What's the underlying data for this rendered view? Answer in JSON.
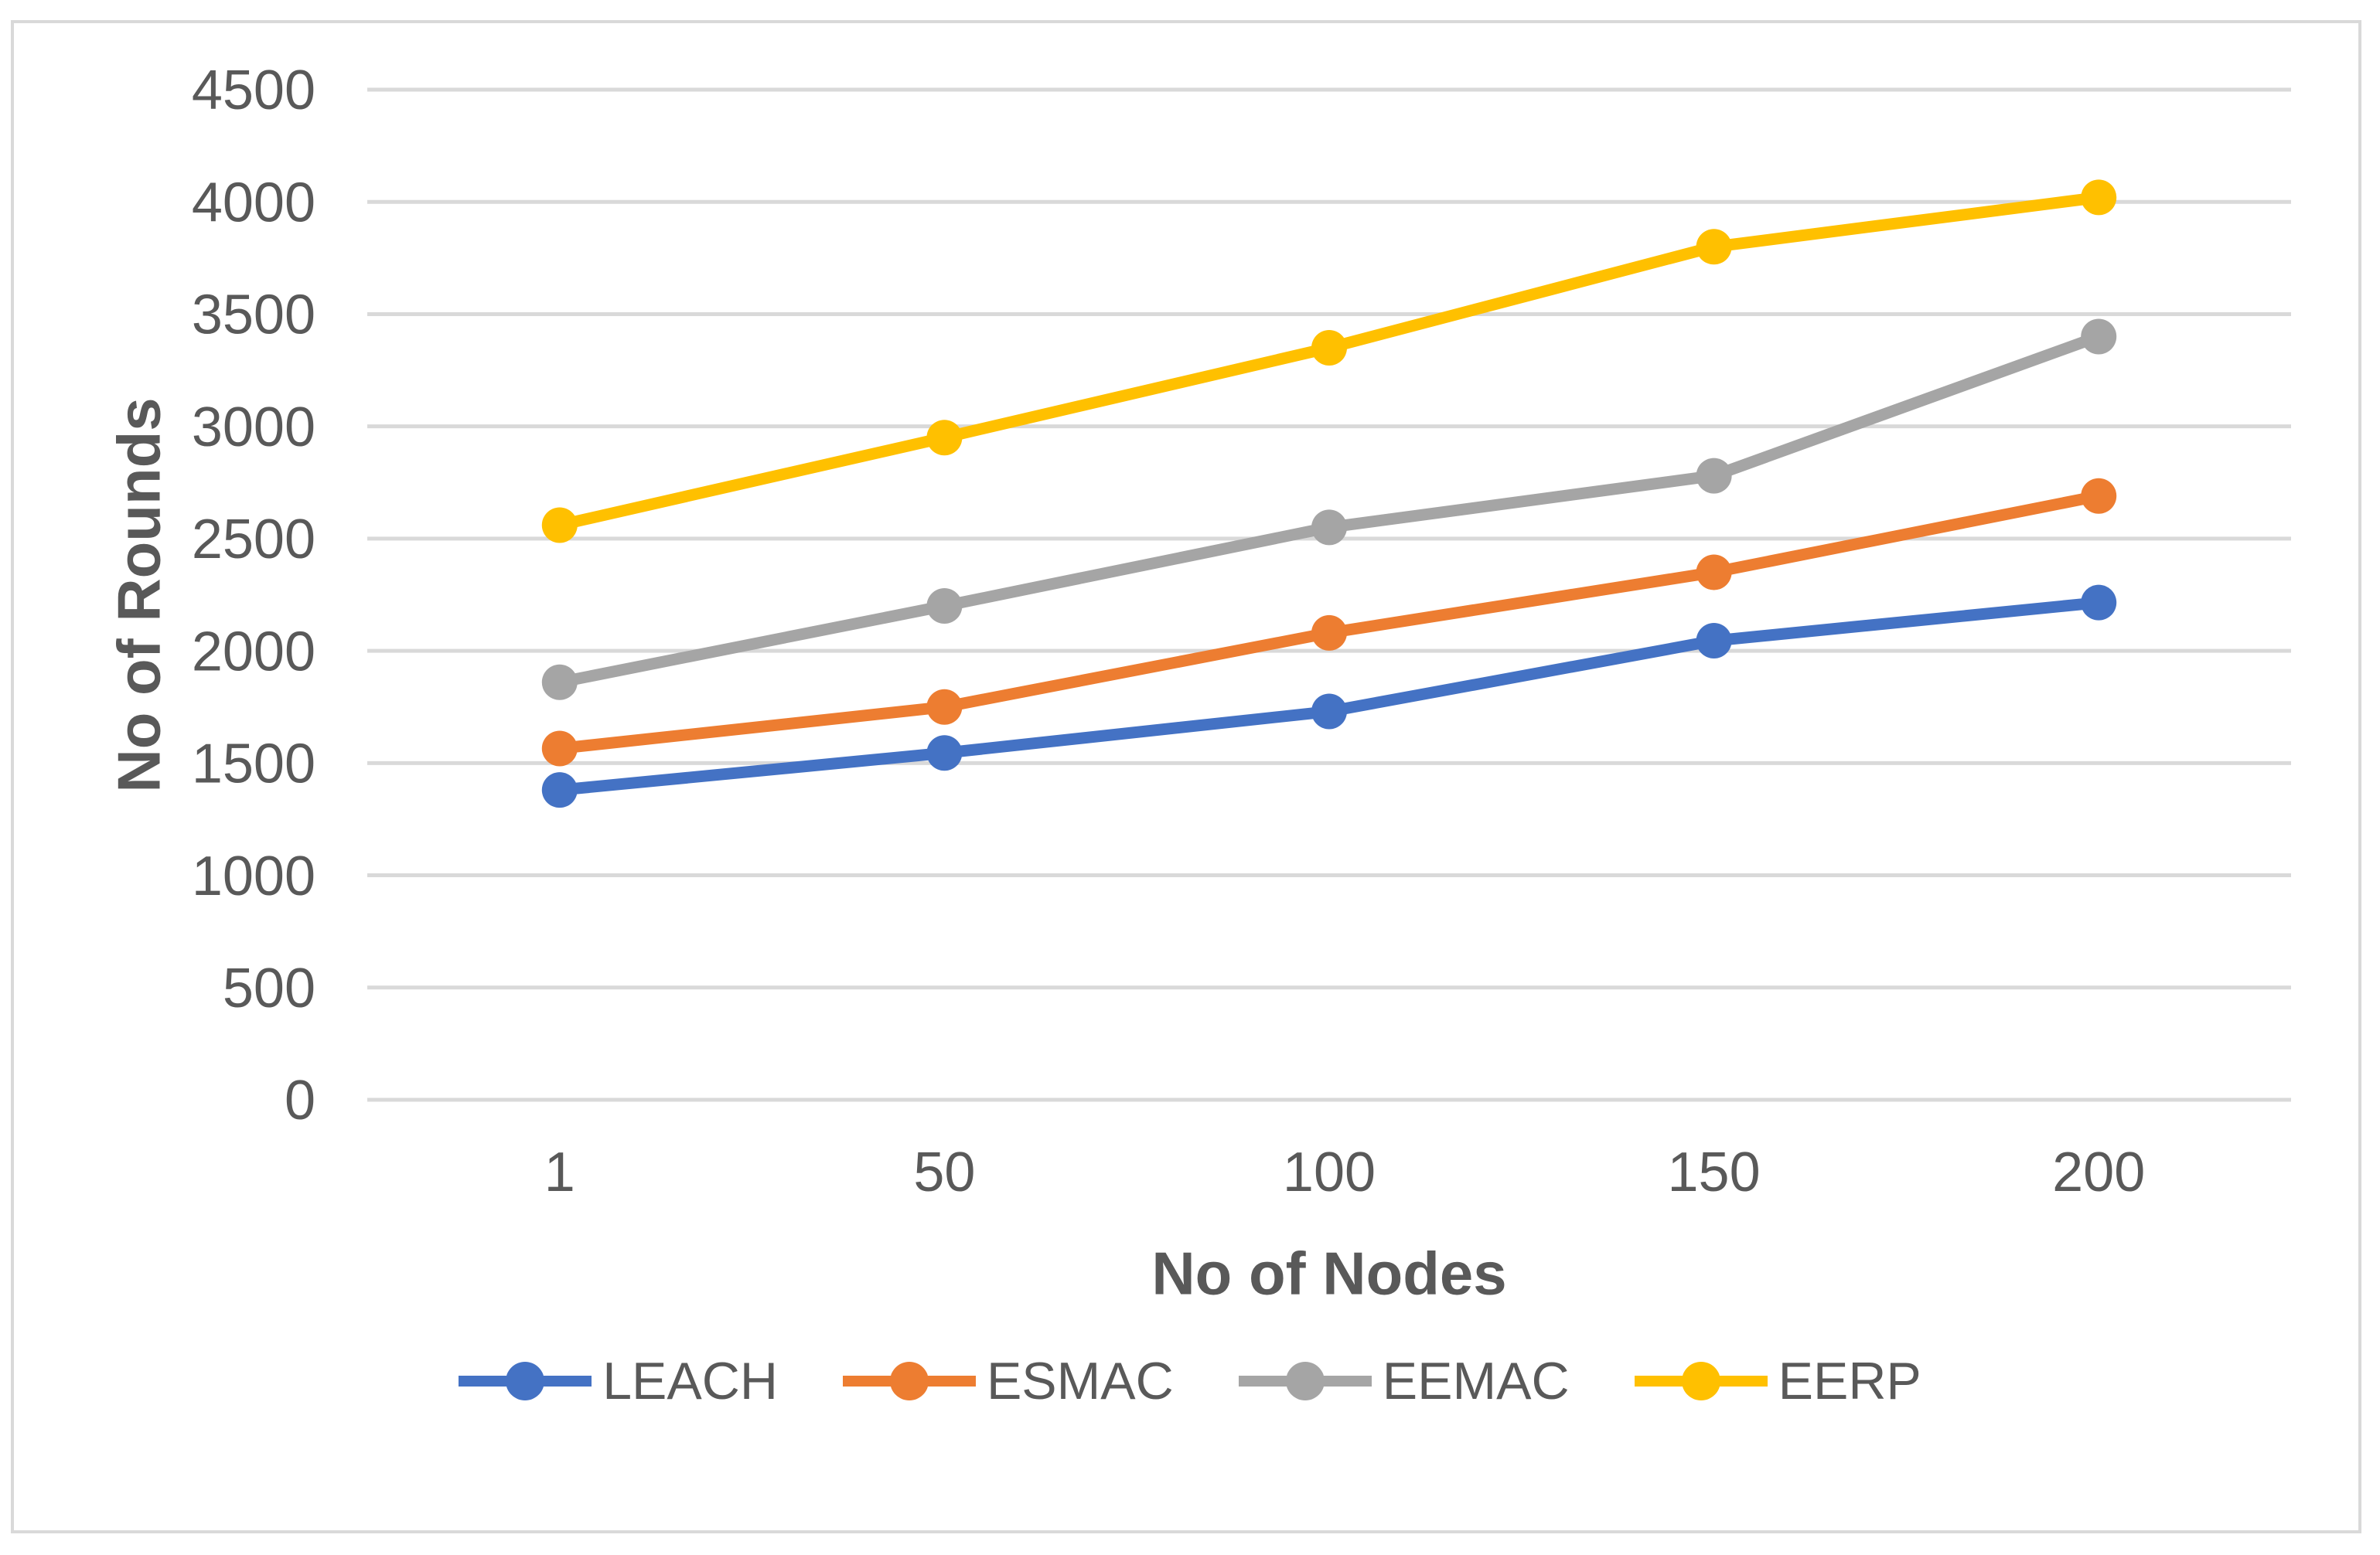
{
  "chart_data": {
    "type": "line",
    "title": "",
    "xlabel": "No of Nodes",
    "ylabel": "No of Rounds",
    "categories": [
      "1",
      "50",
      "100",
      "150",
      "200"
    ],
    "yticks": [
      0,
      500,
      1000,
      1500,
      2000,
      2500,
      3000,
      3500,
      4000,
      4500
    ],
    "ylim": [
      0,
      4500
    ],
    "grid": "horizontal",
    "legend_position": "bottom",
    "marker": "circle",
    "series": [
      {
        "name": "LEACH",
        "color": "#4472C4",
        "values": [
          1380,
          1545,
          1730,
          2045,
          2215
        ]
      },
      {
        "name": "ESMAC",
        "color": "#ED7D31",
        "values": [
          1565,
          1750,
          2080,
          2350,
          2690
        ]
      },
      {
        "name": "EEMAC",
        "color": "#A5A5A5",
        "values": [
          1860,
          2200,
          2550,
          2780,
          3400
        ]
      },
      {
        "name": "EERP",
        "color": "#FFC000",
        "values": [
          2560,
          2950,
          3350,
          3800,
          4020
        ]
      }
    ]
  },
  "colors": {
    "gridline": "#D9D9D9",
    "frame_border": "#D9D9D9",
    "tick_text": "#595959",
    "title_text": "#595959"
  }
}
